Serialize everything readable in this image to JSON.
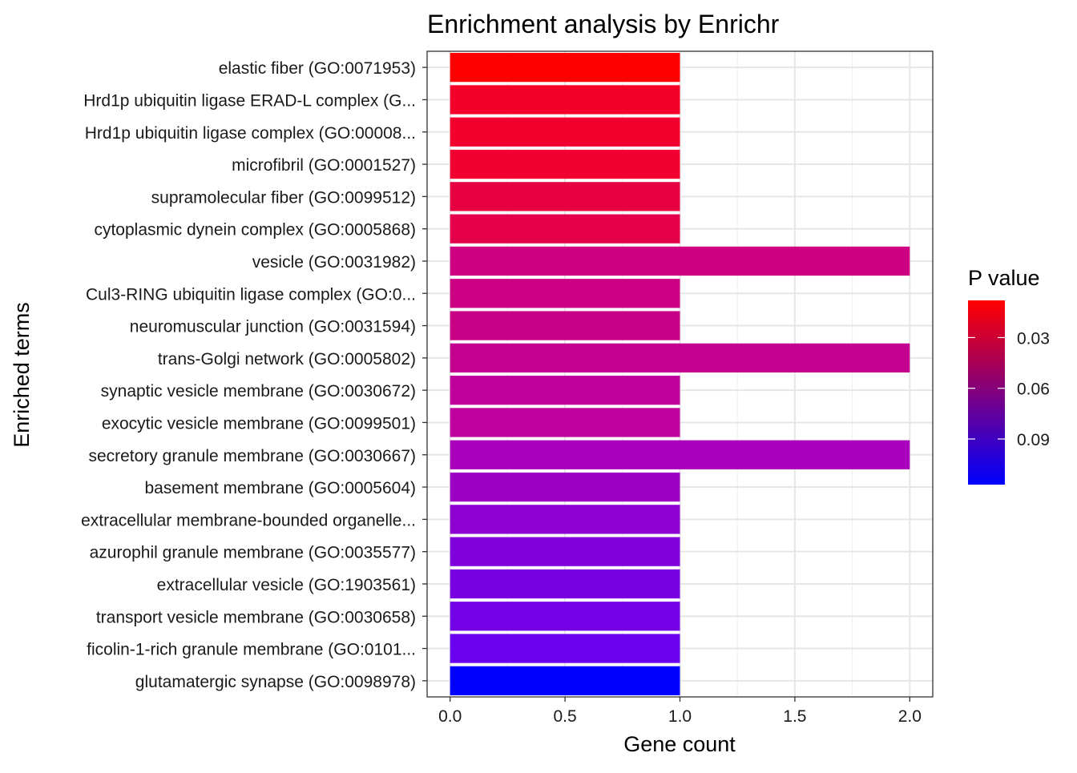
{
  "chart_data": {
    "type": "bar",
    "orientation": "horizontal",
    "title": "Enrichment analysis by Enrichr",
    "xlabel": "Gene count",
    "ylabel": "Enriched terms",
    "xlim": [
      -0.1,
      2.1
    ],
    "xticks": [
      0.0,
      0.5,
      1.0,
      1.5,
      2.0
    ],
    "xtick_labels": [
      "0.0",
      "0.5",
      "1.0",
      "1.5",
      "2.0"
    ],
    "categories": [
      "elastic fiber (GO:0071953)",
      "Hrd1p ubiquitin ligase ERAD-L complex (G...",
      "Hrd1p ubiquitin ligase complex (GO:00008...",
      "microfibril (GO:0001527)",
      "supramolecular fiber (GO:0099512)",
      "cytoplasmic dynein complex (GO:0005868)",
      "vesicle (GO:0031982)",
      "Cul3-RING ubiquitin ligase complex (GO:0...",
      "neuromuscular junction (GO:0031594)",
      "trans-Golgi network (GO:0005802)",
      "synaptic vesicle membrane (GO:0030672)",
      "exocytic vesicle membrane (GO:0099501)",
      "secretory granule membrane (GO:0030667)",
      "basement membrane (GO:0005604)",
      "extracellular membrane-bounded organelle...",
      "azurophil granule membrane (GO:0035577)",
      "extracellular vesicle (GO:1903561)",
      "transport vesicle membrane (GO:0030658)",
      "ficolin-1-rich granule membrane (GO:0101...",
      "glutamatergic synapse (GO:0098978)"
    ],
    "values": [
      1,
      1,
      1,
      1,
      1,
      1,
      2,
      1,
      1,
      2,
      1,
      1,
      2,
      1,
      1,
      1,
      1,
      1,
      1,
      1
    ],
    "colors": [
      "#ff0000",
      "#f5002b",
      "#f3002e",
      "#f10031",
      "#e60041",
      "#e4004a",
      "#cc0080",
      "#cb0083",
      "#c80085",
      "#c40090",
      "#c0009a",
      "#bd009e",
      "#aa00bb",
      "#9c00c5",
      "#8e00d2",
      "#8000dc",
      "#7800e0",
      "#7400e6",
      "#6a00ee",
      "#0000ff"
    ],
    "legend": {
      "title": "P value",
      "position": "right",
      "type": "colorbar",
      "tick_labels": [
        "0.03",
        "0.06",
        "0.09"
      ],
      "tick_values": [
        0.03,
        0.06,
        0.09
      ],
      "range": [
        0.008,
        0.117
      ],
      "low_color": "#ff0000",
      "high_color": "#0000ff"
    },
    "grid": true
  }
}
